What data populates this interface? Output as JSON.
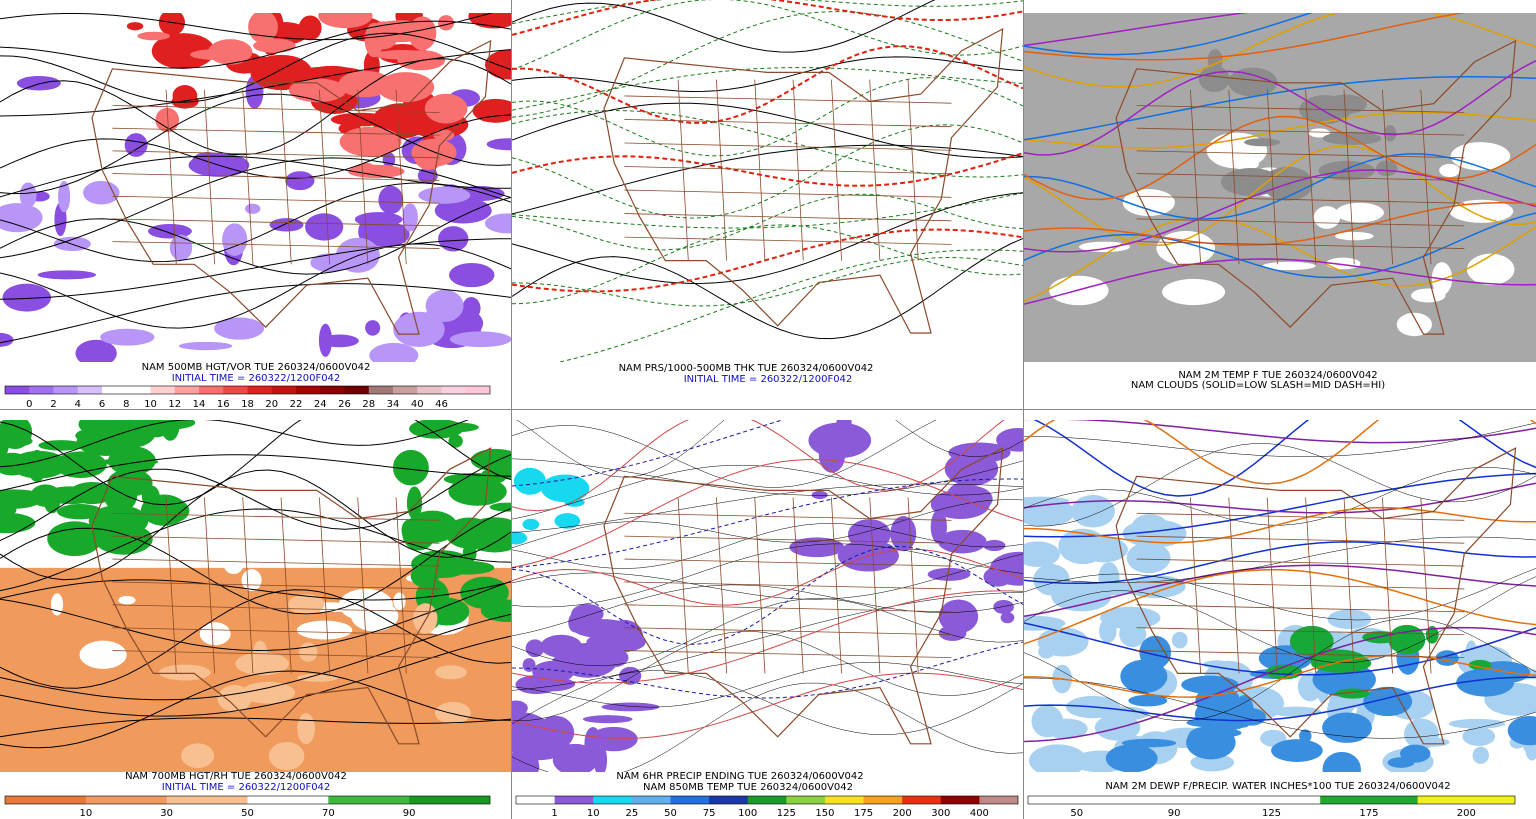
{
  "panels": [
    {
      "captions": [
        "NAM 500MB HGT/VOR TUE 260324/0600V042",
        "INITIAL TIME = 260322/1200F042"
      ],
      "colorbar": {
        "labels": [
          "0",
          "2",
          "4",
          "6",
          "8",
          "10",
          "12",
          "14",
          "16",
          "18",
          "20",
          "22",
          "24",
          "26",
          "28",
          "34",
          "40",
          "46"
        ],
        "colors": [
          "#8a4fe0",
          "#a070f0",
          "#b896f8",
          "#d8c0fc",
          "#ffffff",
          "#ffffff",
          "#ffd0d0",
          "#ffa0a0",
          "#f87070",
          "#f04848",
          "#e02020",
          "#c81010",
          "#a80000",
          "#880000",
          "#700000",
          "#a07878",
          "#c8a0a0",
          "#e8c0c8",
          "#f8d0e0",
          "#ffc8d8"
        ]
      }
    },
    {
      "captions": [
        "NAM PRS/1000-500MB THK TUE 260324/0600V042",
        "INITIAL TIME = 260322/1200F042"
      ]
    },
    {
      "captions": [
        "NAM 2M TEMP F TUE 260324/0600V042",
        "NAM CLOUDS (SOLID=LOW SLASH=MID DASH=HI)"
      ]
    },
    {
      "captions": [
        "NAM 700MB HGT/RH TUE 260324/0600V042",
        "INITIAL TIME = 260322/1200F042"
      ],
      "colorbar": {
        "labels": [
          "10",
          "30",
          "50",
          "70",
          "90"
        ],
        "colors": [
          "#e8773a",
          "#f09860",
          "#f8c090",
          "#ffffff",
          "#3cb83c",
          "#18981e"
        ]
      }
    },
    {
      "captions": [
        "NAM 6HR PRECIP ENDING TUE 260324/0600V042",
        "NAM 850MB TEMP TUE 260324/0600V042"
      ],
      "colorbar": {
        "labels": [
          "1",
          "10",
          "25",
          "50",
          "75",
          "100",
          "125",
          "150",
          "175",
          "200",
          "300",
          "400"
        ],
        "colors": [
          "#ffffff",
          "#8a5ad8",
          "#18d8f0",
          "#60b0f0",
          "#2070e0",
          "#1838a8",
          "#1a9a2a",
          "#8ad040",
          "#f8e020",
          "#f8a020",
          "#e83010",
          "#900000",
          "#c08888"
        ]
      }
    },
    {
      "captions": [
        "NAM 2M DEWP F/PRECIP. WATER INCHES*100 TUE 260324/0600V042"
      ],
      "colorbar": {
        "labels": [
          "50",
          "90",
          "125",
          "175",
          "200"
        ],
        "colors": [
          "#ffffff",
          "#ffffff",
          "#ffffff",
          "#20a830",
          "#f0f020"
        ]
      }
    }
  ]
}
